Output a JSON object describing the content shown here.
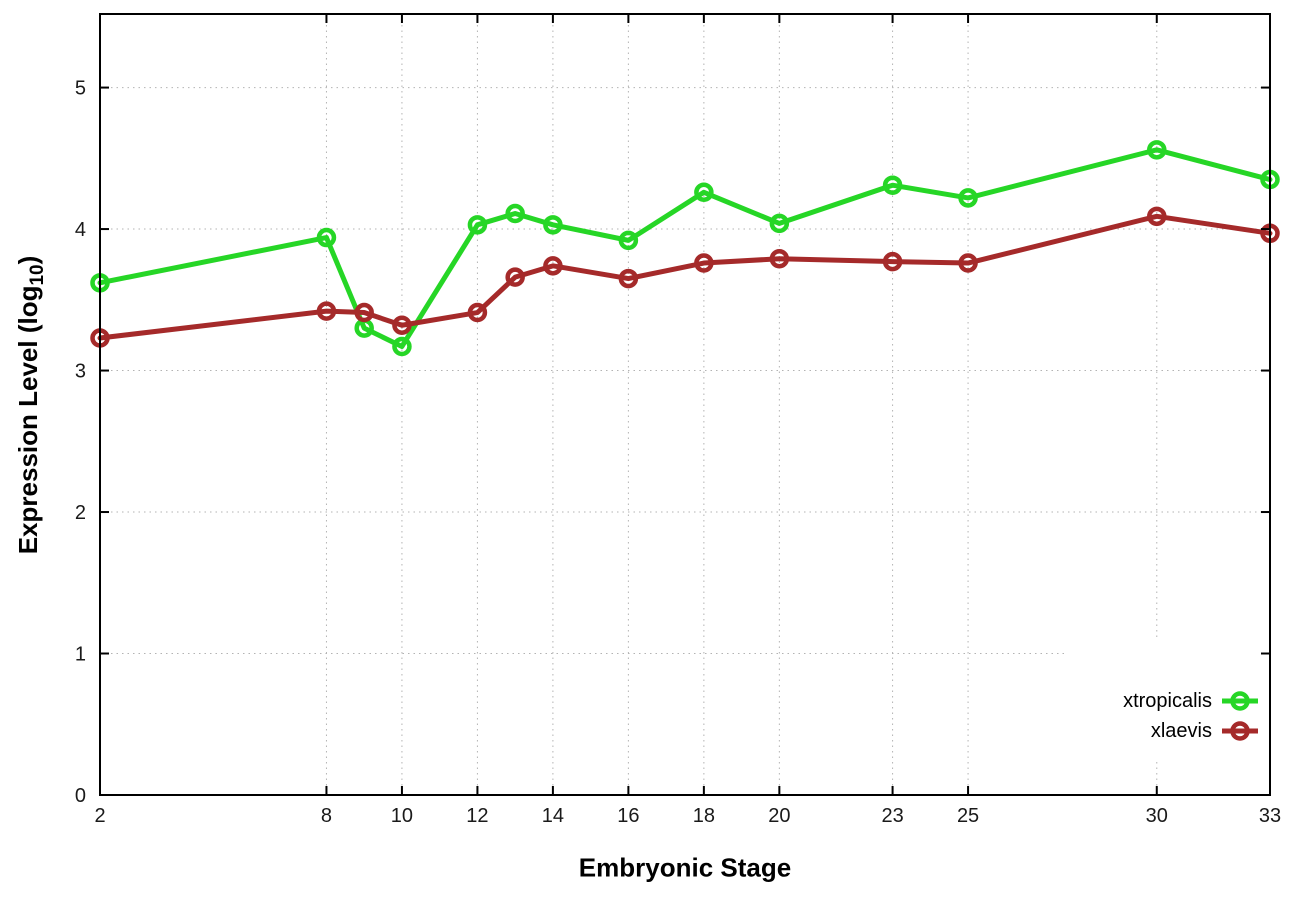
{
  "chart_data": {
    "type": "line",
    "x": [
      2,
      8,
      9,
      10,
      12,
      13,
      14,
      16,
      18,
      20,
      23,
      25,
      30,
      33
    ],
    "series": [
      {
        "name": "xtropicalis",
        "color": "#26d626",
        "marker": "open-circle",
        "values": [
          3.62,
          3.94,
          3.3,
          3.17,
          4.03,
          4.11,
          4.03,
          3.92,
          4.26,
          4.04,
          4.31,
          4.22,
          4.56,
          4.35
        ]
      },
      {
        "name": "xlaevis",
        "color": "#a52a2a",
        "marker": "open-circle",
        "values": [
          3.23,
          3.42,
          3.41,
          3.32,
          3.41,
          3.66,
          3.74,
          3.65,
          3.76,
          3.79,
          3.77,
          3.76,
          4.09,
          3.97
        ]
      }
    ],
    "xlabel": "Embryonic Stage",
    "ylabel": "Expression Level (log10)",
    "ylabel_rich": {
      "prefix": "Expression Level (log",
      "sub": "10",
      "suffix": ")"
    },
    "xlim": [
      2,
      33
    ],
    "ylim": [
      0,
      5.52
    ],
    "x_ticks": [
      2,
      8,
      10,
      12,
      14,
      16,
      18,
      20,
      23,
      25,
      30,
      33
    ],
    "y_ticks": [
      0,
      1,
      2,
      3,
      4,
      5
    ],
    "grid": "dotted",
    "legend_position": "bottom-right",
    "colors": {
      "border": "#000000",
      "gridline": "#b3b3b3",
      "tick_label": "#1a1a1a",
      "legend_background": "#ffffff"
    }
  }
}
